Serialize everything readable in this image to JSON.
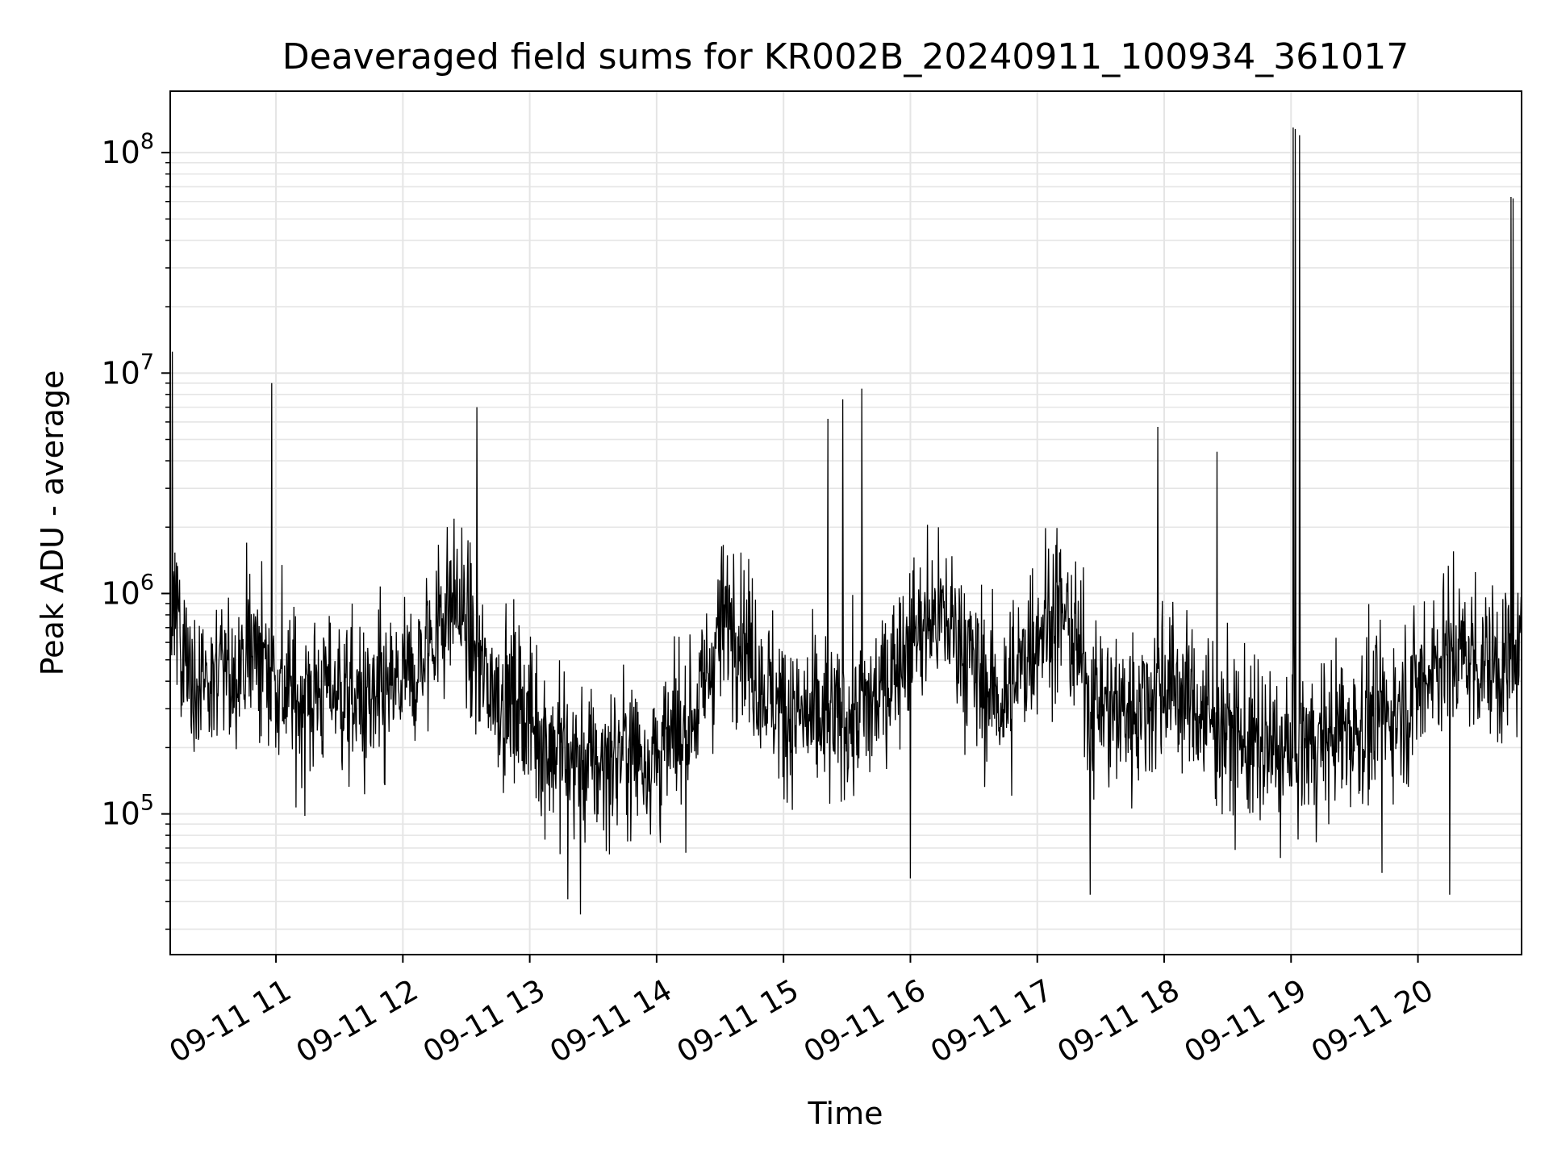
{
  "chart_data": {
    "type": "line",
    "title": "Deaveraged field sums for KR002B_20240911_100934_361017",
    "xlabel": "Time",
    "ylabel": "Peak ADU - average",
    "yscale": "log",
    "ylim": [
      23000,
      190000000
    ],
    "xlim": [
      "2024-09-11 10:10",
      "2024-09-11 20:49"
    ],
    "grid": true,
    "legend": "none",
    "colors": {
      "line": "#000000",
      "grid": "#e5e5e5",
      "axes": "#000000",
      "background": "#ffffff"
    },
    "x_ticks": [
      "09-11 11",
      "09-11 12",
      "09-11 13",
      "09-11 14",
      "09-11 15",
      "09-11 16",
      "09-11 17",
      "09-11 18",
      "09-11 19",
      "09-11 20"
    ],
    "y_ticks": [
      {
        "value": 100000,
        "base": "10",
        "exp": "5"
      },
      {
        "value": 1000000,
        "base": "10",
        "exp": "6"
      },
      {
        "value": 10000000,
        "base": "10",
        "exp": "7"
      },
      {
        "value": 100000000,
        "base": "10",
        "exp": "8"
      }
    ],
    "series": [
      {
        "x": [
          "2024-09-11 10:10",
          "2024-09-11 10:15",
          "2024-09-11 10:20",
          "2024-09-11 10:25",
          "2024-09-11 10:30",
          "2024-09-11 10:35",
          "2024-09-11 10:40",
          "2024-09-11 10:45",
          "2024-09-11 10:50",
          "2024-09-11 10:55",
          "2024-09-11 11:00",
          "2024-09-11 11:05",
          "2024-09-11 11:10",
          "2024-09-11 11:15",
          "2024-09-11 11:20",
          "2024-09-11 11:25",
          "2024-09-11 11:30",
          "2024-09-11 11:35",
          "2024-09-11 11:40",
          "2024-09-11 11:45",
          "2024-09-11 11:50",
          "2024-09-11 11:55",
          "2024-09-11 12:00",
          "2024-09-11 12:05",
          "2024-09-11 12:10",
          "2024-09-11 12:15",
          "2024-09-11 12:20",
          "2024-09-11 12:25",
          "2024-09-11 12:30",
          "2024-09-11 12:35",
          "2024-09-11 12:40",
          "2024-09-11 12:45",
          "2024-09-11 12:50",
          "2024-09-11 12:55",
          "2024-09-11 13:00",
          "2024-09-11 13:05",
          "2024-09-11 13:10",
          "2024-09-11 13:15",
          "2024-09-11 13:20",
          "2024-09-11 13:25",
          "2024-09-11 13:30",
          "2024-09-11 13:35",
          "2024-09-11 13:40",
          "2024-09-11 13:45",
          "2024-09-11 13:50",
          "2024-09-11 13:55",
          "2024-09-11 14:00",
          "2024-09-11 14:05",
          "2024-09-11 14:10",
          "2024-09-11 14:15",
          "2024-09-11 14:20",
          "2024-09-11 14:25",
          "2024-09-11 14:30",
          "2024-09-11 14:35",
          "2024-09-11 14:40",
          "2024-09-11 14:45",
          "2024-09-11 14:50",
          "2024-09-11 14:55",
          "2024-09-11 15:00",
          "2024-09-11 15:05",
          "2024-09-11 15:10",
          "2024-09-11 15:15",
          "2024-09-11 15:20",
          "2024-09-11 15:25",
          "2024-09-11 15:30",
          "2024-09-11 15:35",
          "2024-09-11 15:40",
          "2024-09-11 15:45",
          "2024-09-11 15:50",
          "2024-09-11 15:55",
          "2024-09-11 16:00",
          "2024-09-11 16:05",
          "2024-09-11 16:10",
          "2024-09-11 16:15",
          "2024-09-11 16:20",
          "2024-09-11 16:25",
          "2024-09-11 16:30",
          "2024-09-11 16:35",
          "2024-09-11 16:40",
          "2024-09-11 16:45",
          "2024-09-11 16:50",
          "2024-09-11 16:55",
          "2024-09-11 17:00",
          "2024-09-11 17:05",
          "2024-09-11 17:10",
          "2024-09-11 17:15",
          "2024-09-11 17:20",
          "2024-09-11 17:25",
          "2024-09-11 17:30",
          "2024-09-11 17:35",
          "2024-09-11 17:40",
          "2024-09-11 17:45",
          "2024-09-11 17:50",
          "2024-09-11 17:55",
          "2024-09-11 18:00",
          "2024-09-11 18:05",
          "2024-09-11 18:10",
          "2024-09-11 18:15",
          "2024-09-11 18:20",
          "2024-09-11 18:25",
          "2024-09-11 18:30",
          "2024-09-11 18:35",
          "2024-09-11 18:40",
          "2024-09-11 18:45",
          "2024-09-11 18:50",
          "2024-09-11 18:55",
          "2024-09-11 19:00",
          "2024-09-11 19:05",
          "2024-09-11 19:10",
          "2024-09-11 19:15",
          "2024-09-11 19:20",
          "2024-09-11 19:25",
          "2024-09-11 19:30",
          "2024-09-11 19:35",
          "2024-09-11 19:40",
          "2024-09-11 19:45",
          "2024-09-11 19:50",
          "2024-09-11 19:55",
          "2024-09-11 20:00",
          "2024-09-11 20:05",
          "2024-09-11 20:10",
          "2024-09-11 20:15",
          "2024-09-11 20:20",
          "2024-09-11 20:25",
          "2024-09-11 20:30",
          "2024-09-11 20:35",
          "2024-09-11 20:40",
          "2024-09-11 20:45"
        ],
        "y": [
          800000,
          600000,
          450000,
          400000,
          380000,
          420000,
          460000,
          520000,
          560000,
          500000,
          420000,
          350000,
          330000,
          340000,
          360000,
          380000,
          360000,
          330000,
          310000,
          300000,
          320000,
          350000,
          380000,
          420000,
          520000,
          700000,
          850000,
          950000,
          700000,
          480000,
          400000,
          360000,
          340000,
          320000,
          280000,
          230000,
          200000,
          190000,
          180000,
          170000,
          165000,
          170000,
          180000,
          200000,
          190000,
          180000,
          185000,
          200000,
          220000,
          260000,
          320000,
          450000,
          700000,
          800000,
          700000,
          500000,
          400000,
          330000,
          300000,
          280000,
          270000,
          260000,
          250000,
          260000,
          270000,
          280000,
          300000,
          340000,
          420000,
          550000,
          650000,
          700000,
          750000,
          780000,
          700000,
          600000,
          450000,
          380000,
          350000,
          320000,
          400000,
          550000,
          700000,
          800000,
          850000,
          700000,
          500000,
          380000,
          320000,
          300000,
          290000,
          300000,
          320000,
          360000,
          400000,
          380000,
          340000,
          300000,
          280000,
          260000,
          240000,
          220000,
          210000,
          200000,
          190000,
          185000,
          190000,
          200000,
          210000,
          220000,
          230000,
          240000,
          250000,
          260000,
          270000,
          280000,
          300000,
          330000,
          380000,
          460000,
          520000,
          560000,
          540000,
          520000,
          500000,
          480000,
          470000,
          460000
        ]
      }
    ],
    "spikes": [
      {
        "x": "2024-09-11 10:11",
        "y": 12500000
      },
      {
        "x": "2024-09-11 10:58",
        "y": 9000000
      },
      {
        "x": "2024-09-11 12:35",
        "y": 7000000
      },
      {
        "x": "2024-09-11 15:21",
        "y": 6200000
      },
      {
        "x": "2024-09-11 15:28",
        "y": 7600000
      },
      {
        "x": "2024-09-11 15:37",
        "y": 8500000
      },
      {
        "x": "2024-09-11 17:57",
        "y": 5700000
      },
      {
        "x": "2024-09-11 18:25",
        "y": 4400000
      },
      {
        "x": "2024-09-11 19:01",
        "y": 130000000
      },
      {
        "x": "2024-09-11 19:02",
        "y": 128000000
      },
      {
        "x": "2024-09-11 19:04",
        "y": 120000000
      },
      {
        "x": "2024-09-11 20:44",
        "y": 63000000
      },
      {
        "x": "2024-09-11 20:45",
        "y": 62000000
      },
      {
        "x": "2024-09-11 13:24",
        "y": 35000
      },
      {
        "x": "2024-09-11 13:18",
        "y": 41000
      },
      {
        "x": "2024-09-11 17:25",
        "y": 43000
      },
      {
        "x": "2024-09-11 20:15",
        "y": 43000
      },
      {
        "x": "2024-09-11 16:00",
        "y": 51000
      },
      {
        "x": "2024-09-11 19:43",
        "y": 54000
      }
    ]
  }
}
